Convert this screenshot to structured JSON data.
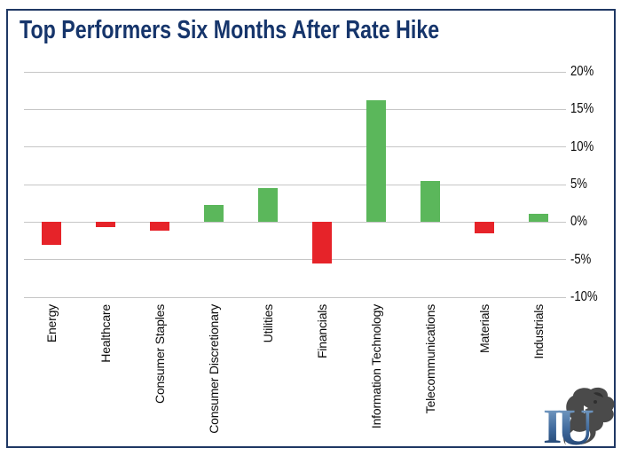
{
  "title": "Top Performers Six Months After Rate Hike",
  "colors": {
    "positive_bar": "#5bb75b",
    "negative_bar": "#e62329",
    "title_text": "#16356b",
    "panel_border": "#1f3864",
    "gridline": "#c6c6c6",
    "tick_text": "#0a0a0a"
  },
  "chart_data": {
    "type": "bar",
    "title": "Top Performers Six Months After Rate Hike",
    "categories": [
      "Energy",
      "Healthcare",
      "Consumer Staples",
      "Consumer Discretionary",
      "Utilities",
      "Financials",
      "Information Technology",
      "Telecommunications",
      "Materials",
      "Industrials"
    ],
    "values": [
      -3.0,
      -0.7,
      -1.2,
      2.3,
      4.5,
      -5.5,
      16.2,
      5.5,
      -1.5,
      1.1
    ],
    "xlabel": "",
    "ylabel": "",
    "ylim": [
      -10,
      20
    ],
    "yticks": [
      20,
      15,
      10,
      5,
      0,
      -5,
      -10
    ],
    "ytick_labels": [
      "20%",
      "15%",
      "10%",
      "5%",
      "0%",
      "-5%",
      "-10%"
    ],
    "grid": true,
    "y_axis_side": "right",
    "legend": "none",
    "color_rule": "green for positive values, red for negative values"
  },
  "logo": {
    "letter_i": "I",
    "letter_u": "U",
    "description": "lion head over IU monogram"
  }
}
